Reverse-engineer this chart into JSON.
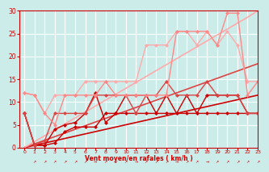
{
  "x": [
    0,
    1,
    2,
    3,
    4,
    5,
    6,
    7,
    8,
    9,
    10,
    11,
    12,
    13,
    14,
    15,
    16,
    17,
    18,
    19,
    20,
    21,
    22,
    23
  ],
  "series": [
    {
      "name": "linear1",
      "y": [
        0.0,
        0.5,
        1.0,
        1.5,
        2.0,
        2.5,
        3.0,
        3.5,
        4.0,
        4.5,
        5.0,
        5.5,
        6.0,
        6.5,
        7.0,
        7.5,
        8.0,
        8.5,
        9.0,
        9.5,
        10.0,
        10.5,
        11.0,
        11.5
      ],
      "color": "#cc0000",
      "lw": 1.2,
      "marker": null,
      "ms": 0,
      "alpha": 1.0
    },
    {
      "name": "linear2",
      "y": [
        0.0,
        0.8,
        1.6,
        2.4,
        3.2,
        4.0,
        4.8,
        5.6,
        6.4,
        7.2,
        8.0,
        8.8,
        9.6,
        10.4,
        11.2,
        12.0,
        12.8,
        13.6,
        14.4,
        15.2,
        16.0,
        16.8,
        17.6,
        18.4
      ],
      "color": "#dd4444",
      "lw": 1.2,
      "marker": null,
      "ms": 0,
      "alpha": 1.0
    },
    {
      "name": "linear3",
      "y": [
        0.0,
        1.3,
        2.6,
        3.9,
        5.2,
        6.5,
        7.8,
        9.1,
        10.4,
        11.7,
        13.0,
        14.3,
        15.6,
        16.9,
        18.2,
        19.5,
        20.8,
        22.1,
        23.4,
        24.7,
        26.0,
        27.3,
        28.6,
        30.0
      ],
      "color": "#ffaaaa",
      "lw": 1.2,
      "marker": null,
      "ms": 0,
      "alpha": 1.0
    },
    {
      "name": "scatter_dark1",
      "y": [
        7.5,
        0.5,
        0.5,
        1.0,
        3.5,
        4.5,
        4.5,
        4.5,
        7.5,
        7.5,
        7.5,
        7.5,
        7.5,
        7.5,
        7.5,
        7.5,
        7.5,
        7.5,
        7.5,
        7.5,
        7.5,
        7.5,
        7.5,
        7.5
      ],
      "color": "#cc0000",
      "lw": 1.0,
      "marker": "D",
      "ms": 2,
      "alpha": 1.0
    },
    {
      "name": "scatter_dark2",
      "y": [
        7.5,
        0.5,
        0.5,
        4.0,
        5.0,
        5.5,
        7.5,
        12.0,
        5.5,
        7.5,
        11.5,
        11.5,
        11.5,
        7.5,
        11.5,
        7.5,
        11.5,
        7.5,
        11.5,
        11.5,
        11.5,
        11.5,
        7.5,
        7.5
      ],
      "color": "#cc0000",
      "lw": 1.0,
      "marker": "D",
      "ms": 2,
      "alpha": 1.0
    },
    {
      "name": "scatter_medium",
      "y": [
        7.5,
        0.5,
        1.5,
        7.5,
        7.5,
        7.5,
        7.5,
        11.5,
        11.5,
        11.5,
        11.5,
        7.5,
        11.5,
        11.5,
        14.5,
        11.5,
        11.5,
        11.5,
        14.5,
        11.5,
        11.5,
        11.5,
        7.5,
        7.5
      ],
      "color": "#dd4444",
      "lw": 1.0,
      "marker": "D",
      "ms": 2,
      "alpha": 1.0
    },
    {
      "name": "scatter_light1",
      "y": [
        12.0,
        11.5,
        7.5,
        11.5,
        11.5,
        11.5,
        14.5,
        14.5,
        14.5,
        14.5,
        14.5,
        14.5,
        22.5,
        22.5,
        22.5,
        25.5,
        25.5,
        22.5,
        25.5,
        22.5,
        25.5,
        22.5,
        14.5,
        14.5
      ],
      "color": "#ffaaaa",
      "lw": 1.0,
      "marker": "D",
      "ms": 2,
      "alpha": 1.0
    },
    {
      "name": "scatter_light2",
      "y": [
        12.0,
        11.5,
        7.5,
        5.0,
        11.5,
        11.5,
        11.5,
        11.5,
        14.5,
        11.5,
        11.5,
        11.5,
        11.5,
        11.5,
        11.5,
        25.5,
        25.5,
        25.5,
        25.5,
        22.5,
        29.5,
        29.5,
        11.5,
        14.5
      ],
      "color": "#ff8888",
      "lw": 1.0,
      "marker": "D",
      "ms": 2,
      "alpha": 1.0
    }
  ],
  "xlabel": "Vent moyen/en rafales ( km/h )",
  "xlim": [
    -0.5,
    23
  ],
  "ylim": [
    0,
    30
  ],
  "yticks": [
    0,
    5,
    10,
    15,
    20,
    25,
    30
  ],
  "xticks": [
    0,
    1,
    2,
    3,
    4,
    5,
    6,
    7,
    8,
    9,
    10,
    11,
    12,
    13,
    14,
    15,
    16,
    17,
    18,
    19,
    20,
    21,
    22,
    23
  ],
  "bg_color": "#ccecea",
  "grid_color": "#ffffff",
  "axis_color": "#cc0000",
  "tick_color": "#cc0000",
  "label_color": "#cc0000",
  "arrow_chars": [
    "↗",
    "↗",
    "↗",
    "↗",
    "↗",
    "↗",
    "→",
    "↗",
    "↙",
    "↗",
    "→",
    "↗",
    "↗",
    "↗",
    "→",
    "↗",
    "↗",
    "→",
    "↗",
    "↗",
    "↗",
    "↗",
    "↗"
  ]
}
